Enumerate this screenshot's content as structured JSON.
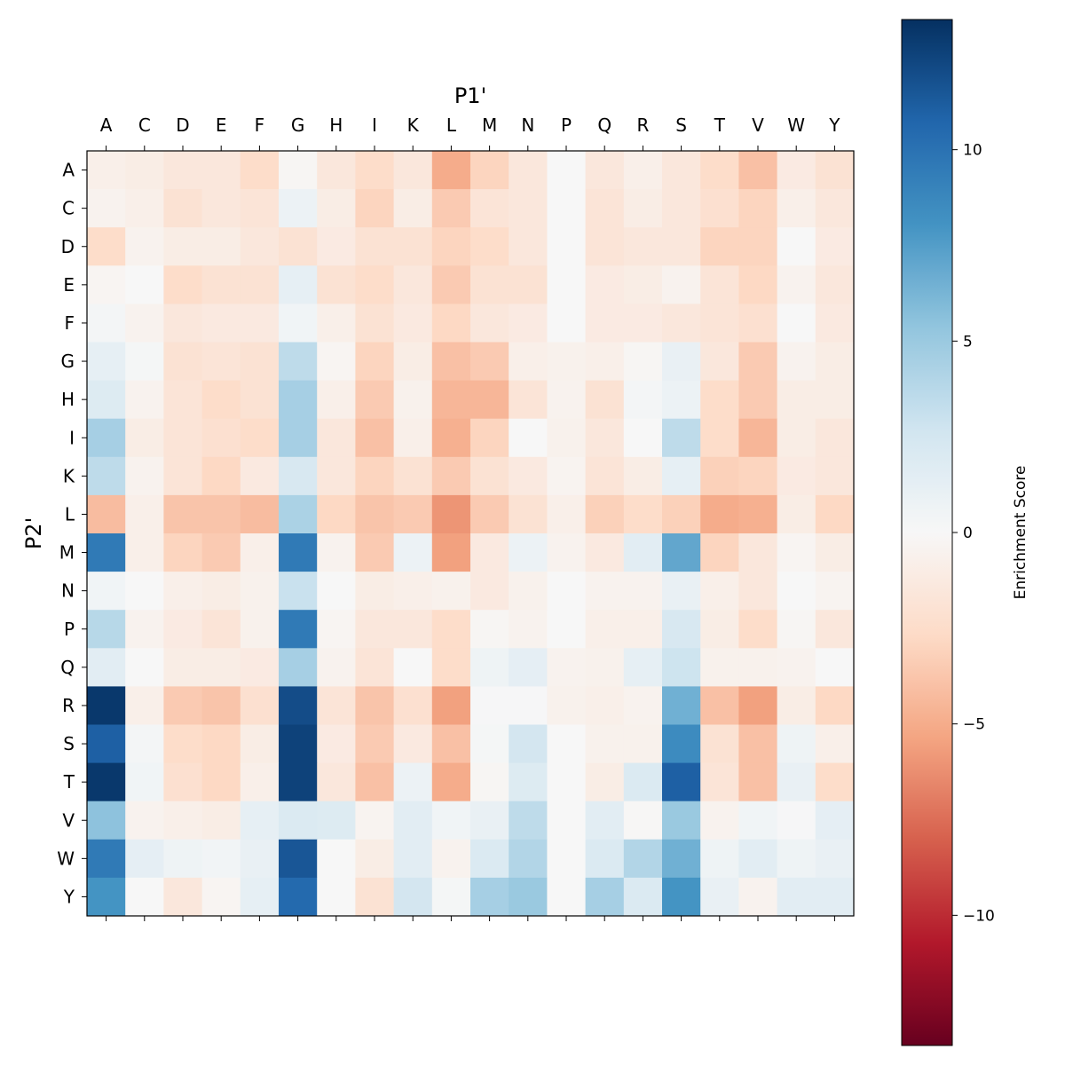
{
  "chart_data": {
    "type": "heatmap",
    "xlabel": "P1'",
    "ylabel": "P2'",
    "x_categories": [
      "A",
      "C",
      "D",
      "E",
      "F",
      "G",
      "H",
      "I",
      "K",
      "L",
      "M",
      "N",
      "P",
      "Q",
      "R",
      "S",
      "T",
      "V",
      "W",
      "Y"
    ],
    "y_categories": [
      "A",
      "C",
      "D",
      "E",
      "F",
      "G",
      "H",
      "I",
      "K",
      "L",
      "M",
      "N",
      "P",
      "Q",
      "R",
      "S",
      "T",
      "V",
      "W",
      "Y"
    ],
    "colormap": "RdBu",
    "colorbar": {
      "label": "Enrichment Score",
      "range": [
        -13.4,
        13.4
      ],
      "ticks": [
        10,
        5,
        0,
        -5,
        -10
      ],
      "tick_labels": [
        "10",
        "5",
        "0",
        "−5",
        "−10"
      ]
    },
    "x_axis_position": "top",
    "values": [
      [
        -0.8,
        -1,
        -1.5,
        -1.5,
        -2.5,
        -0.2,
        -1.5,
        -2.5,
        -1.5,
        -5,
        -3,
        -1.5,
        0,
        -1.5,
        -0.8,
        -1.5,
        -2.5,
        -4,
        -1.2,
        -2
      ],
      [
        -0.5,
        -0.8,
        -2,
        -1.5,
        -1.8,
        0.8,
        -1,
        -3,
        -1,
        -3.5,
        -1.8,
        -1.5,
        0,
        -1.8,
        -1,
        -1.5,
        -2.2,
        -3,
        -0.8,
        -1.5
      ],
      [
        -2.5,
        -0.5,
        -1,
        -1,
        -1.5,
        -2,
        -1.2,
        -2,
        -2,
        -3,
        -2.5,
        -1.5,
        0,
        -1.8,
        -1.5,
        -1.5,
        -3,
        -3,
        0,
        -1.2
      ],
      [
        -0.3,
        0,
        -2.5,
        -2,
        -2,
        1.2,
        -2,
        -2.5,
        -1.5,
        -3.5,
        -2,
        -2,
        0,
        -1.2,
        -1,
        -0.5,
        -1.8,
        -2.8,
        -0.5,
        -1.5
      ],
      [
        0.3,
        -0.5,
        -1.5,
        -1.3,
        -1.3,
        0.5,
        -0.8,
        -2,
        -1.3,
        -2.8,
        -1.5,
        -1.2,
        0,
        -1.2,
        -1.2,
        -1.5,
        -1.8,
        -2.2,
        0,
        -1.3
      ],
      [
        1.2,
        0.2,
        -2,
        -1.8,
        -2,
        3.5,
        -0.3,
        -3,
        -1,
        -4,
        -3.5,
        -0.8,
        -0.6,
        -0.8,
        -0.2,
        1,
        -1.5,
        -3.5,
        -0.5,
        -1
      ],
      [
        1.8,
        -0.5,
        -1.8,
        -2.5,
        -2,
        4.5,
        -0.8,
        -3.5,
        -0.6,
        -4.5,
        -4.5,
        -1.8,
        -0.5,
        -2,
        0.3,
        0.8,
        -2.5,
        -3.5,
        -1,
        -1
      ],
      [
        4.5,
        -1,
        -1.8,
        -2.2,
        -2.5,
        4.5,
        -1.5,
        -4,
        -0.8,
        -4.8,
        -3,
        0,
        -0.6,
        -1.5,
        0,
        3.5,
        -2.5,
        -4.5,
        -1,
        -1.5
      ],
      [
        3.5,
        -0.5,
        -1.8,
        -2.8,
        -1.3,
        2.2,
        -1.5,
        -3,
        -2,
        -3.5,
        -2,
        -1.3,
        -0.4,
        -1.8,
        -1,
        1.2,
        -3.2,
        -3,
        -1.2,
        -1.5
      ],
      [
        -4.2,
        -0.8,
        -3.8,
        -3.8,
        -4.2,
        4.3,
        -2.8,
        -3.8,
        -3.5,
        -6,
        -3.5,
        -2,
        -0.8,
        -3.2,
        -2.5,
        -3.2,
        -5,
        -4.8,
        -1,
        -2.8
      ],
      [
        9.5,
        -0.8,
        -3,
        -3.5,
        -0.8,
        9.5,
        -0.5,
        -3.5,
        0.8,
        -5.5,
        -1.3,
        0.8,
        -0.5,
        -1.3,
        1.5,
        7,
        -3,
        -1.5,
        -0.3,
        -1
      ],
      [
        0.5,
        0,
        -0.8,
        -1,
        -0.6,
        3,
        0,
        -1,
        -0.8,
        -0.6,
        -1.3,
        -0.6,
        0,
        -0.5,
        -0.5,
        1,
        -0.8,
        -1.5,
        0,
        -0.4
      ],
      [
        3.8,
        -0.5,
        -1.2,
        -1.8,
        -0.6,
        9.5,
        -0.3,
        -1.5,
        -1.5,
        -2.5,
        -0.2,
        -0.5,
        0,
        -0.8,
        -0.8,
        2.2,
        -1,
        -2.5,
        -0.2,
        -1.5
      ],
      [
        1.5,
        0,
        -1,
        -1,
        -1.2,
        4.5,
        -0.5,
        -1.8,
        0,
        -2.5,
        0.6,
        1.3,
        -0.5,
        -0.6,
        1.2,
        2.8,
        -0.6,
        -0.6,
        -0.5,
        0
      ],
      [
        13,
        -0.8,
        -3.5,
        -3.8,
        -2.2,
        12,
        -1.8,
        -3.8,
        -2.2,
        -5.5,
        0.1,
        0.1,
        -0.6,
        -0.8,
        -0.5,
        6.5,
        -4,
        -5.5,
        -1,
        -2.8
      ],
      [
        11,
        0.3,
        -2.5,
        -2.8,
        -1,
        12.5,
        -1.2,
        -3.5,
        -1.3,
        -4,
        0.2,
        2.5,
        0,
        -0.6,
        -0.6,
        8.5,
        -2,
        -4,
        0.6,
        -0.8
      ],
      [
        13,
        0.5,
        -2.2,
        -2.8,
        -0.8,
        12.5,
        -1.5,
        -4,
        0.8,
        -5,
        -0.2,
        1.8,
        0,
        -1,
        2,
        11,
        -1.8,
        -4,
        1,
        -2.5
      ],
      [
        5.5,
        -0.5,
        -0.8,
        -1,
        1.2,
        2,
        1.8,
        -0.4,
        1.5,
        0.5,
        1,
        3.5,
        0,
        1.5,
        -0.1,
        5,
        -0.5,
        0.5,
        0.1,
        1.3
      ],
      [
        9.5,
        1.3,
        0.6,
        0.4,
        1,
        11.5,
        0,
        -1,
        1.5,
        -0.5,
        2,
        4,
        0,
        2,
        4,
        6.5,
        0.6,
        1.5,
        0.6,
        1
      ],
      [
        8,
        0,
        -1.5,
        -0.3,
        1.2,
        10.5,
        0,
        -2,
        2.5,
        0.2,
        4.5,
        5,
        0,
        4.5,
        2,
        8,
        1,
        -0.5,
        1.5,
        1.5
      ]
    ]
  }
}
